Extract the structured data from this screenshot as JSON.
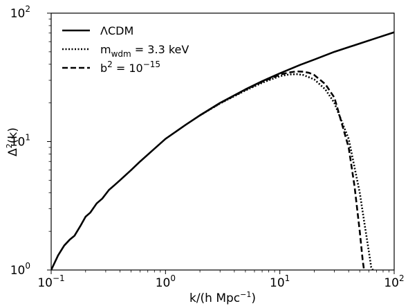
{
  "chart_data": {
    "type": "line",
    "xscale": "log",
    "yscale": "log",
    "xlim": [
      0.1,
      100
    ],
    "ylim": [
      1,
      100
    ],
    "xlabel": {
      "base": "k/(h Mpc",
      "sup": "−1",
      "tail": ")"
    },
    "ylabel": {
      "base": "Δ",
      "sup": "2",
      "tail": "(k)"
    },
    "xticks": [
      {
        "value": 0.1,
        "base": "10",
        "exp": "−1"
      },
      {
        "value": 1,
        "base": "10",
        "exp": "0"
      },
      {
        "value": 10,
        "base": "10",
        "exp": "1"
      },
      {
        "value": 100,
        "base": "10",
        "exp": "2"
      }
    ],
    "yticks": [
      {
        "value": 1,
        "base": "10",
        "exp": "0"
      },
      {
        "value": 10,
        "base": "10",
        "exp": "1"
      },
      {
        "value": 100,
        "base": "10",
        "exp": "2"
      }
    ],
    "legend_position": "top-left",
    "series": [
      {
        "name": "ΛCDM",
        "legend": {
          "main": "ΛCDM"
        },
        "style": "solid",
        "color": "#000000",
        "x": [
          0.1,
          0.115,
          0.13,
          0.145,
          0.16,
          0.18,
          0.2,
          0.22,
          0.25,
          0.28,
          0.32,
          0.36,
          0.4,
          0.5,
          0.6,
          0.8,
          1.0,
          1.5,
          2.0,
          3.0,
          5.0,
          7.0,
          10.0,
          15.0,
          20.0,
          30.0,
          50.0,
          70.0,
          100.0
        ],
        "y": [
          1.0,
          1.3,
          1.55,
          1.72,
          1.85,
          2.2,
          2.6,
          2.8,
          3.3,
          3.6,
          4.2,
          4.6,
          5.0,
          6.0,
          7.0,
          8.8,
          10.5,
          13.5,
          16.0,
          20.0,
          25.5,
          29.5,
          34.0,
          39.5,
          43.5,
          50.0,
          58.0,
          64.0,
          71.0
        ]
      },
      {
        "name": "m_wdm = 3.3 keV",
        "legend": {
          "main": "m",
          "sub": "wdm",
          "rest": " = 3.3 keV"
        },
        "style": "dotted",
        "color": "#000000",
        "x": [
          2.0,
          3.0,
          5.0,
          7.0,
          10.0,
          12.0,
          14.0,
          16.0,
          20.0,
          25.0,
          30.0,
          40.0,
          50.0,
          55.0,
          60.0,
          63.0,
          65.0
        ],
        "y": [
          16.0,
          19.8,
          25.0,
          28.7,
          32.3,
          33.3,
          33.5,
          33.0,
          30.5,
          25.5,
          20.0,
          10.5,
          4.0,
          2.3,
          1.4,
          1.05,
          1.0
        ]
      },
      {
        "name": "b^2 = 10^-15",
        "legend": {
          "main": "b",
          "sup": "2",
          "rest": " = 10",
          "sup2": "−15"
        },
        "style": "dashed",
        "color": "#000000",
        "x": [
          2.0,
          3.0,
          5.0,
          7.0,
          10.0,
          12.0,
          14.0,
          16.0,
          18.0,
          20.0,
          25.0,
          30.0,
          40.0,
          45.0,
          50.0,
          53.0,
          54.5
        ],
        "y": [
          16.0,
          19.9,
          25.3,
          29.2,
          33.2,
          34.5,
          35.2,
          35.0,
          34.3,
          33.0,
          28.0,
          22.0,
          9.0,
          4.5,
          2.0,
          1.2,
          1.0
        ]
      }
    ]
  }
}
